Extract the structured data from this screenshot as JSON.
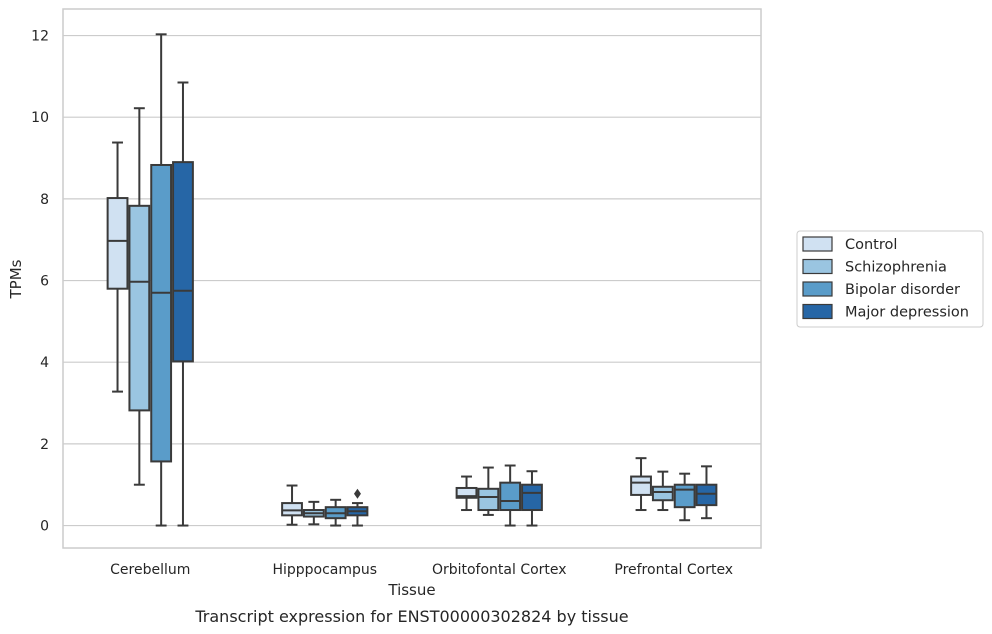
{
  "chart_data": {
    "type": "box",
    "xlabel": "Tissue",
    "ylabel": "TPMs",
    "caption": "Transcript expression for ENST00000302824 by tissue",
    "categories": [
      "Cerebellum",
      "Hipppocampus",
      "Orbitofontal Cortex",
      "Prefrontal Cortex"
    ],
    "ylim": [
      -0.55,
      12.65
    ],
    "yticks": [
      0,
      2,
      4,
      6,
      8,
      10,
      12
    ],
    "grid": "horizontal",
    "legend_position": "right",
    "series": [
      {
        "name": "Control",
        "color": "#d0e1f2",
        "boxes": [
          {
            "whislo": 3.28,
            "q1": 5.8,
            "med": 6.97,
            "q3": 8.02,
            "whishi": 9.38,
            "fliers": []
          },
          {
            "whislo": 0.02,
            "q1": 0.25,
            "med": 0.37,
            "q3": 0.55,
            "whishi": 0.98,
            "fliers": []
          },
          {
            "whislo": 0.38,
            "q1": 0.68,
            "med": 0.72,
            "q3": 0.92,
            "whishi": 1.2,
            "fliers": []
          },
          {
            "whislo": 0.38,
            "q1": 0.75,
            "med": 1.05,
            "q3": 1.2,
            "whishi": 1.65,
            "fliers": []
          }
        ]
      },
      {
        "name": "Schizophrenia",
        "color": "#9ac5e1",
        "boxes": [
          {
            "whislo": 1.0,
            "q1": 2.82,
            "med": 5.97,
            "q3": 7.83,
            "whishi": 10.22,
            "fliers": []
          },
          {
            "whislo": 0.03,
            "q1": 0.22,
            "med": 0.3,
            "q3": 0.38,
            "whishi": 0.58,
            "fliers": []
          },
          {
            "whislo": 0.26,
            "q1": 0.38,
            "med": 0.7,
            "q3": 0.9,
            "whishi": 1.42,
            "fliers": []
          },
          {
            "whislo": 0.38,
            "q1": 0.62,
            "med": 0.82,
            "q3": 0.95,
            "whishi": 1.32,
            "fliers": []
          }
        ]
      },
      {
        "name": "Bipolar disorder",
        "color": "#5a9cc9",
        "boxes": [
          {
            "whislo": 0.0,
            "q1": 1.57,
            "med": 5.7,
            "q3": 8.83,
            "whishi": 12.03,
            "fliers": []
          },
          {
            "whislo": 0.0,
            "q1": 0.18,
            "med": 0.3,
            "q3": 0.45,
            "whishi": 0.63,
            "fliers": []
          },
          {
            "whislo": 0.0,
            "q1": 0.38,
            "med": 0.6,
            "q3": 1.05,
            "whishi": 1.47,
            "fliers": []
          },
          {
            "whislo": 0.13,
            "q1": 0.45,
            "med": 0.88,
            "q3": 1.0,
            "whishi": 1.27,
            "fliers": []
          }
        ]
      },
      {
        "name": "Major depression",
        "color": "#2666a6",
        "boxes": [
          {
            "whislo": 0.0,
            "q1": 4.02,
            "med": 5.75,
            "q3": 8.9,
            "whishi": 10.85,
            "fliers": []
          },
          {
            "whislo": 0.0,
            "q1": 0.25,
            "med": 0.35,
            "q3": 0.45,
            "whishi": 0.55,
            "fliers": [
              0.78
            ]
          },
          {
            "whislo": 0.0,
            "q1": 0.38,
            "med": 0.8,
            "q3": 1.0,
            "whishi": 1.33,
            "fliers": []
          },
          {
            "whislo": 0.18,
            "q1": 0.5,
            "med": 0.78,
            "q3": 1.0,
            "whishi": 1.45,
            "fliers": []
          }
        ]
      }
    ]
  }
}
